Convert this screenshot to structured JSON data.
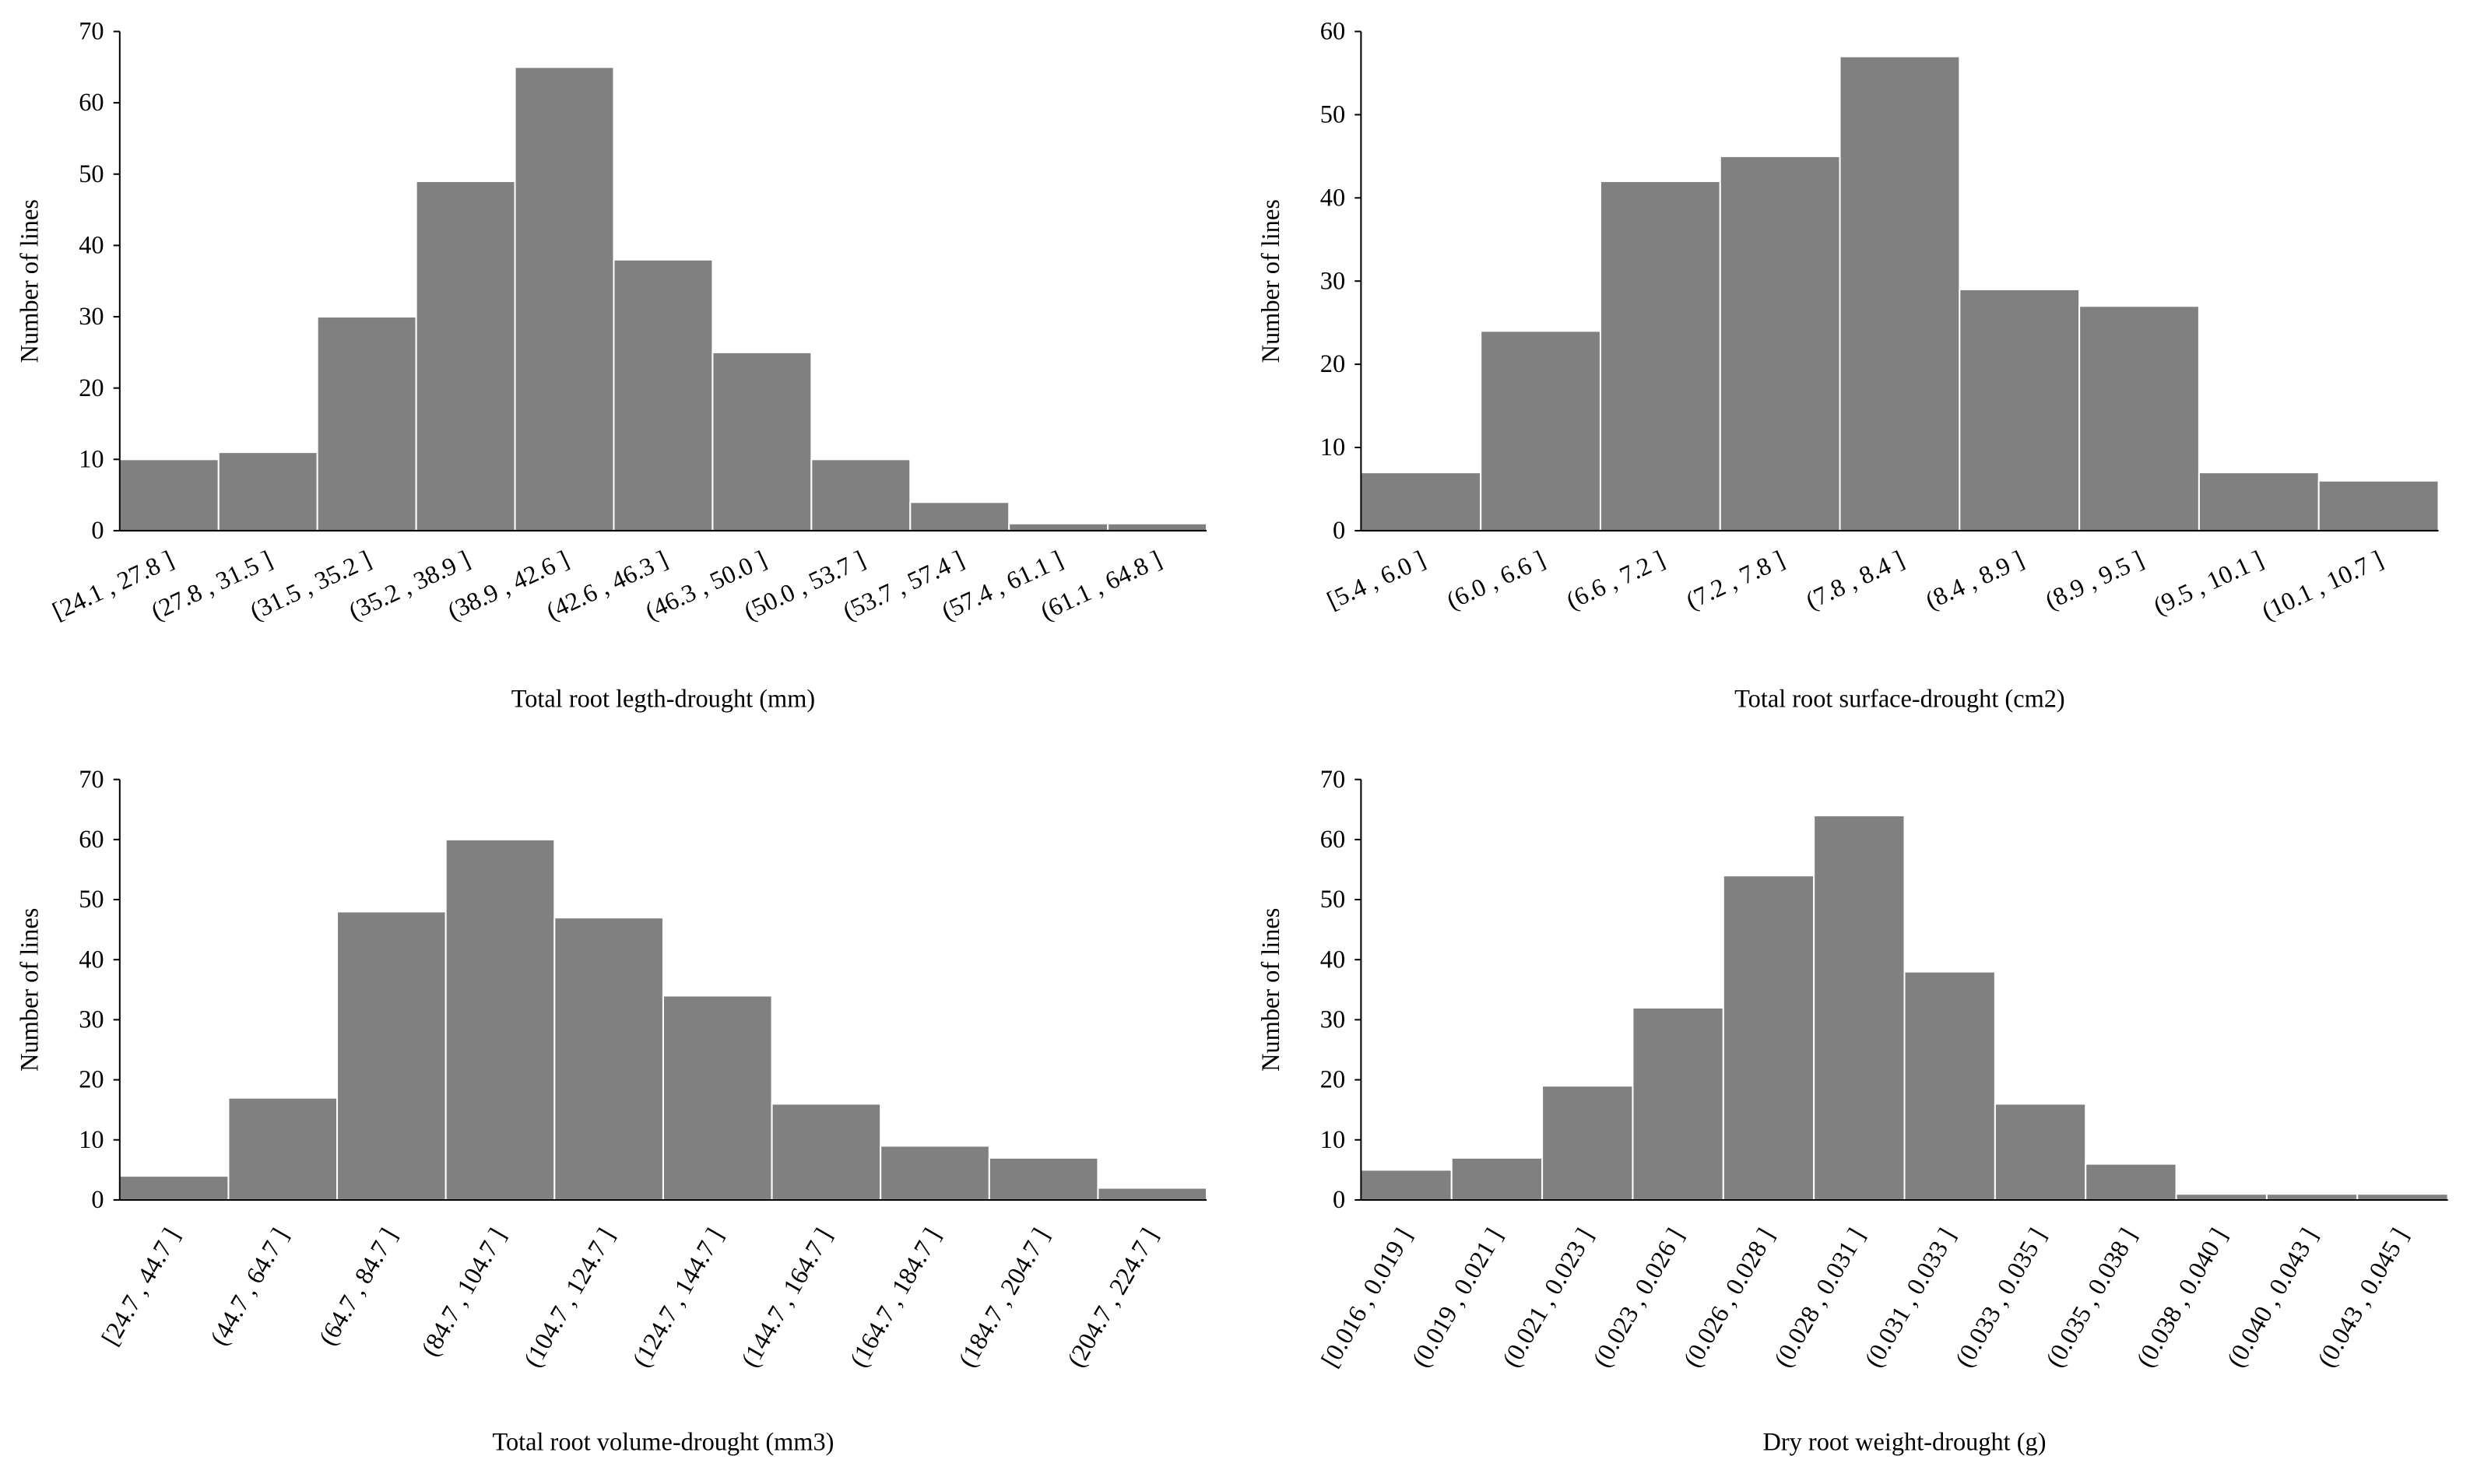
{
  "chart_data": [
    {
      "type": "bar",
      "x_label": "Total root legth-drought  (mm)",
      "y_label": "Number of lines",
      "categories": [
        "[24.1 , 27.8 ]",
        "(27.8 , 31.5 ]",
        "(31.5 , 35.2 ]",
        "(35.2 , 38.9 ]",
        "(38.9 , 42.6 ]",
        "(42.6 , 46.3 ]",
        "(46.3 , 50.0 ]",
        "(50.0 , 53.7 ]",
        "(53.7 , 57.4 ]",
        "(57.4 , 61.1 ]",
        "(61.1 , 64.8 ]"
      ],
      "values": [
        10,
        11,
        30,
        49,
        65,
        38,
        25,
        10,
        4,
        1,
        1
      ],
      "color": "#808080",
      "ylim": [
        0,
        70
      ],
      "yticks": [
        0,
        10,
        20,
        30,
        40,
        50,
        60,
        70
      ]
    },
    {
      "type": "bar",
      "x_label": "Total root surface-drought (cm2)",
      "y_label": "Number of lines",
      "categories": [
        "[5.4 , 6.0 ]",
        "(6.0 , 6.6 ]",
        "(6.6 , 7.2 ]",
        "(7.2 , 7.8 ]",
        "(7.8 , 8.4 ]",
        "(8.4 , 8.9 ]",
        "(8.9 , 9.5 ]",
        "(9.5 , 10.1 ]",
        "(10.1 , 10.7 ]"
      ],
      "values": [
        7,
        24,
        42,
        45,
        57,
        29,
        27,
        7,
        6
      ],
      "color": "#808080",
      "ylim": [
        0,
        60
      ],
      "yticks": [
        0,
        10,
        20,
        30,
        40,
        50,
        60
      ]
    },
    {
      "type": "bar",
      "x_label": "Total root volume-drought  (mm3)",
      "y_label": "Number of lines",
      "categories": [
        "[24.7 , 44.7 ]",
        "(44.7 , 64.7 ]",
        "(64.7 , 84.7 ]",
        "(84.7 , 104.7 ]",
        "(104.7 , 124.7 ]",
        "(124.7 , 144.7 ]",
        "(144.7 , 164.7 ]",
        "(164.7 , 184.7 ]",
        "(184.7 , 204.7 ]",
        "(204.7 , 224.7 ]"
      ],
      "values": [
        4,
        17,
        48,
        60,
        47,
        34,
        16,
        9,
        7,
        2
      ],
      "color": "#808080",
      "ylim": [
        0,
        70
      ],
      "yticks": [
        0,
        10,
        20,
        30,
        40,
        50,
        60,
        70
      ]
    },
    {
      "type": "bar",
      "x_label": "Dry root weight-drought  (g)",
      "y_label": "Number of lines",
      "categories": [
        "[0.016 , 0.019 ]",
        "(0.019 , 0.021 ]",
        "(0.021 , 0.023 ]",
        "(0.023 , 0.026 ]",
        "(0.026 , 0.028 ]",
        "(0.028 , 0.031 ]",
        "(0.031 , 0.033 ]",
        "(0.033 , 0.035 ]",
        "(0.035 , 0.038 ]",
        "(0.038 , 0.040 ]",
        "(0.040 , 0.043 ]",
        "(0.043 , 0.045 ]"
      ],
      "values": [
        5,
        7,
        19,
        32,
        54,
        64,
        38,
        16,
        6,
        1,
        1,
        1
      ],
      "color": "#808080",
      "ylim": [
        0,
        70
      ],
      "yticks": [
        0,
        10,
        20,
        30,
        40,
        50,
        60,
        70
      ]
    }
  ]
}
